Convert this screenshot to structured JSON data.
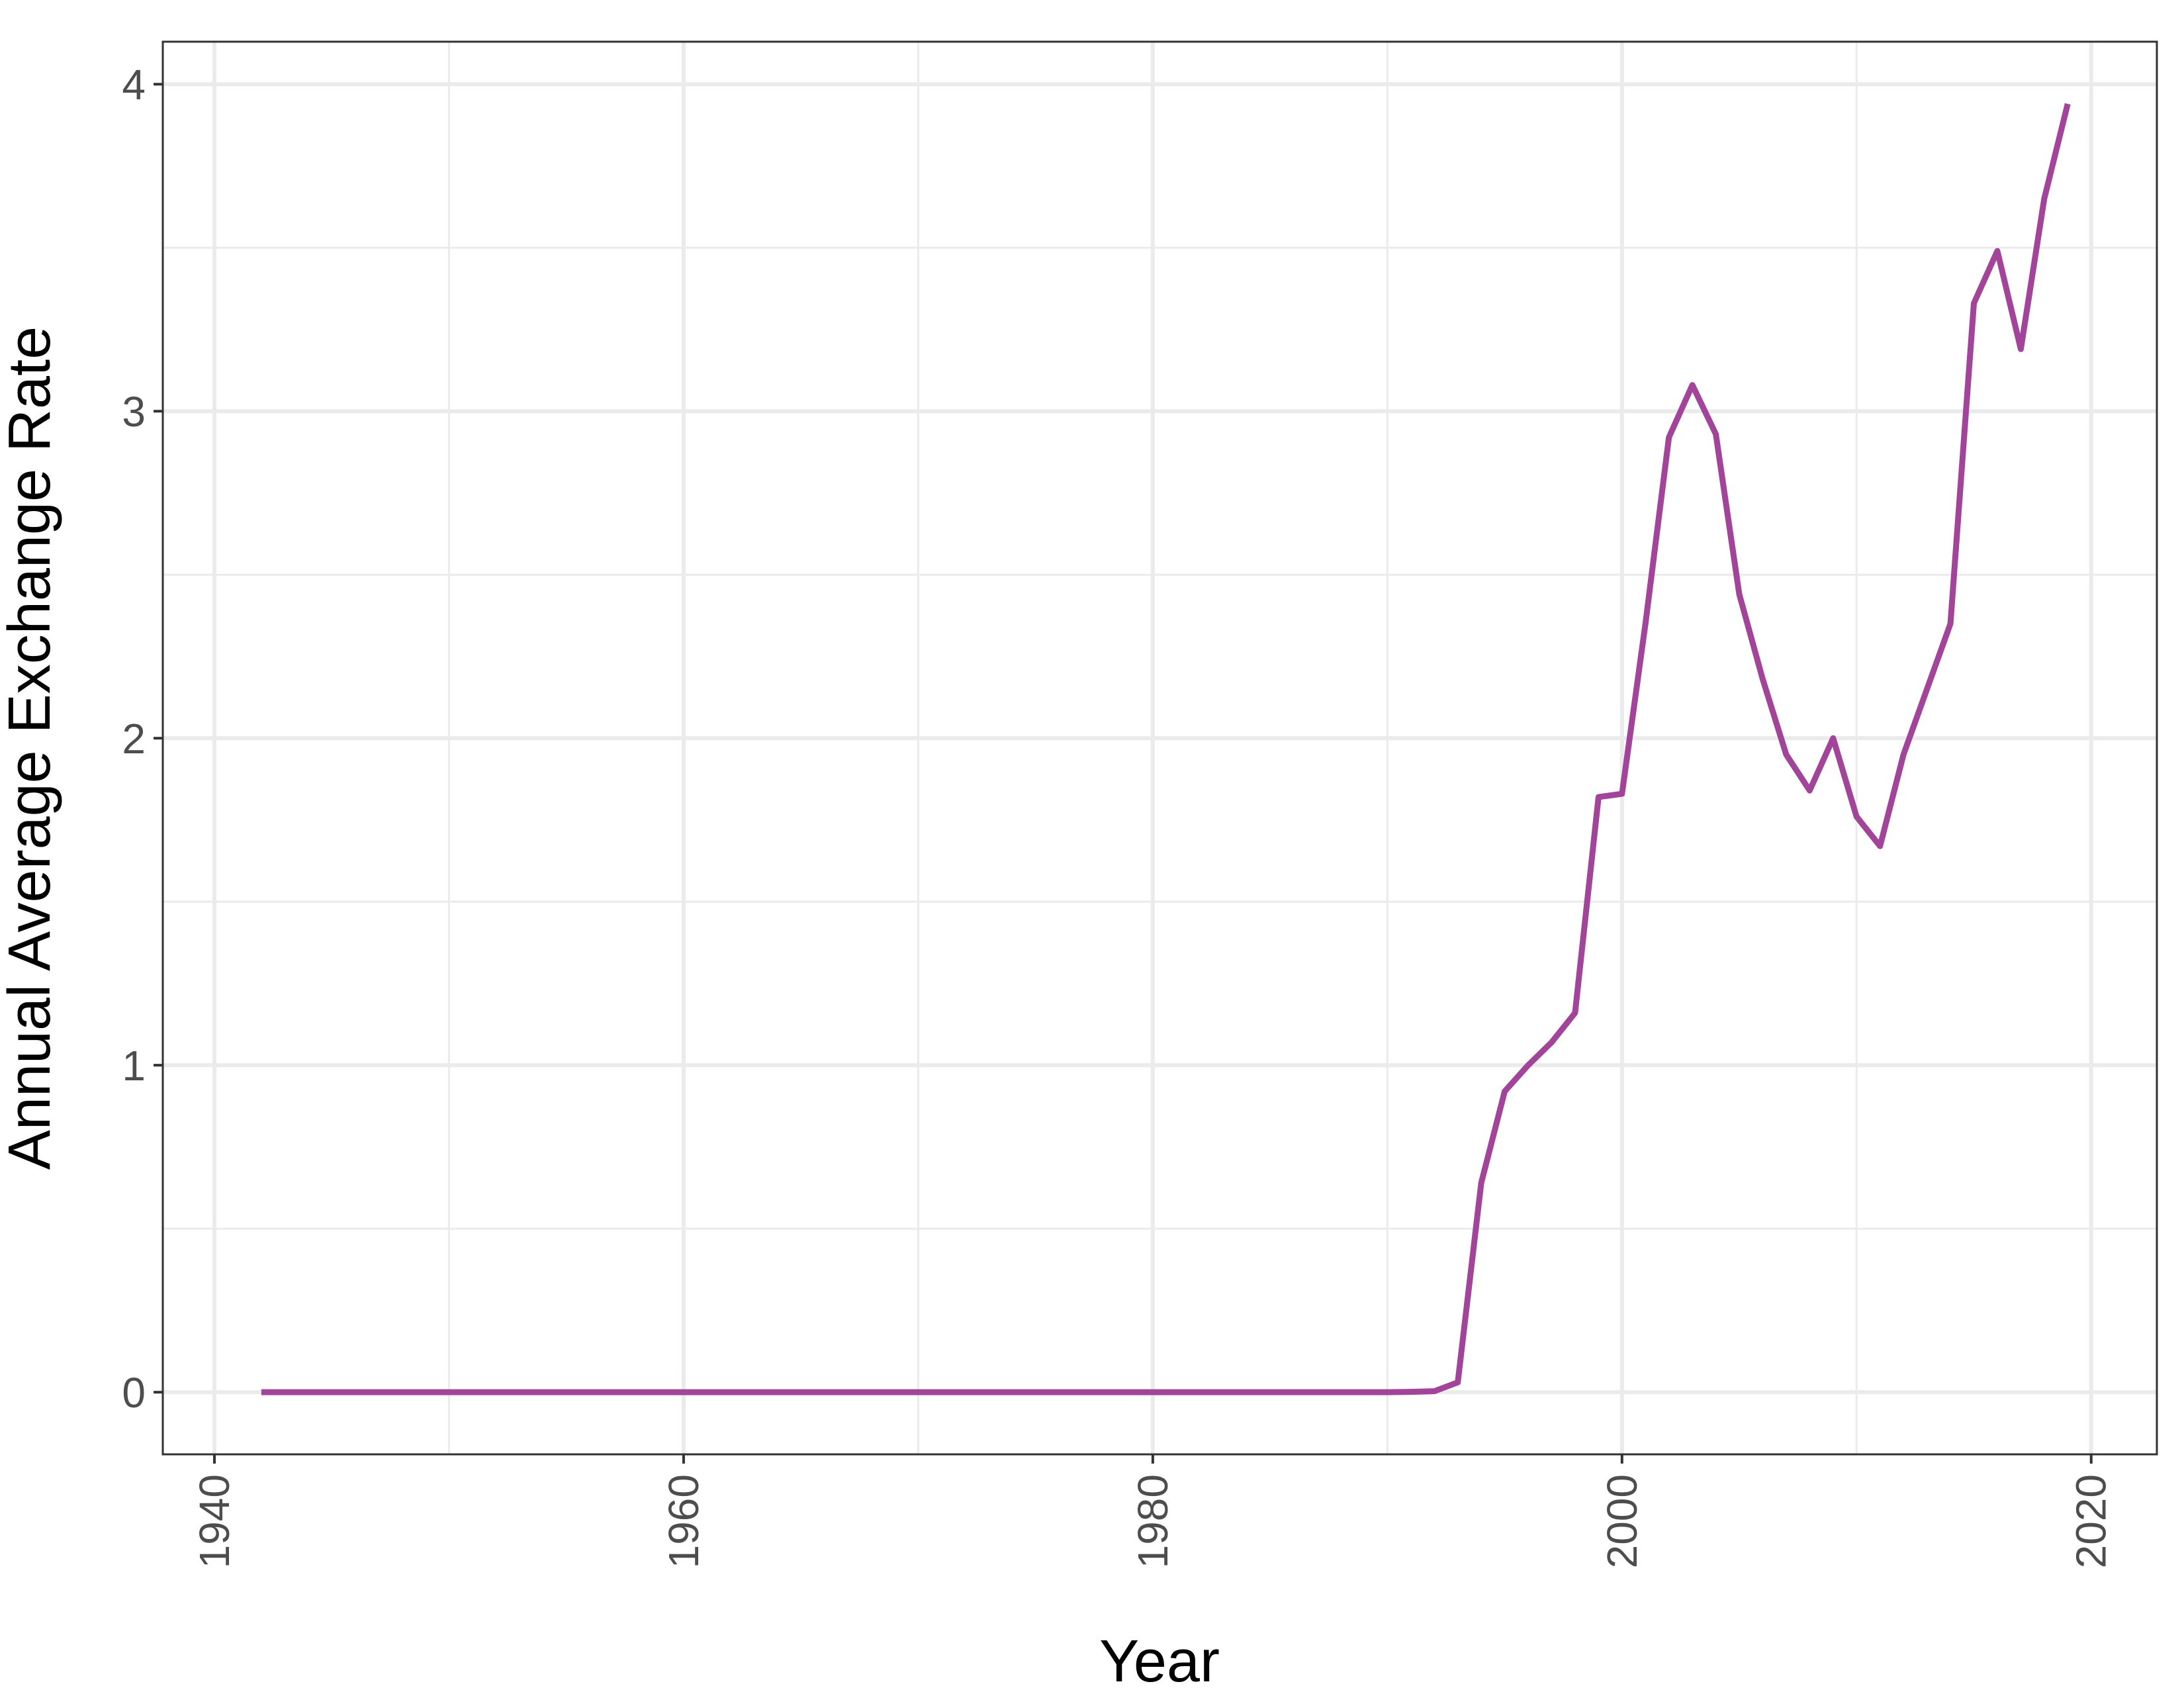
{
  "chart_data": {
    "type": "line",
    "title": "",
    "xlabel": "Year",
    "ylabel": "Annual Average Exchange Rate",
    "xlim": [
      1937.8,
      2022.8
    ],
    "ylim": [
      -0.19,
      4.13
    ],
    "x_ticks": [
      1940,
      1960,
      1980,
      2000,
      2020
    ],
    "x_tick_labels": [
      "1940",
      "1960",
      "1980",
      "2000",
      "2020"
    ],
    "x_minor_ticks": [
      1950,
      1970,
      1990,
      2010
    ],
    "y_ticks": [
      0,
      1,
      2,
      3,
      4
    ],
    "y_tick_labels": [
      "0",
      "1",
      "2",
      "3",
      "4"
    ],
    "y_minor_ticks": [
      0.5,
      1.5,
      2.5,
      3.5
    ],
    "x_tick_label_rotation": 90,
    "grid": true,
    "legend": "none",
    "series": [
      {
        "color": "#a3449b",
        "x": [
          1942,
          1945,
          1950,
          1955,
          1960,
          1965,
          1970,
          1975,
          1980,
          1985,
          1989,
          1990,
          1991,
          1992,
          1993,
          1994,
          1995,
          1996,
          1997,
          1998,
          1999,
          2000,
          2001,
          2002,
          2003,
          2004,
          2005,
          2006,
          2007,
          2008,
          2009,
          2010,
          2011,
          2012,
          2013,
          2014,
          2015,
          2016,
          2017,
          2018,
          2019
        ],
        "y": [
          0,
          0,
          0,
          0,
          0,
          0,
          0,
          0,
          0,
          0,
          0,
          0,
          0.001,
          0.003,
          0.03,
          0.64,
          0.92,
          1.0,
          1.07,
          1.16,
          1.82,
          1.83,
          2.35,
          2.92,
          3.08,
          2.93,
          2.44,
          2.18,
          1.95,
          1.84,
          2.0,
          1.76,
          1.67,
          1.95,
          2.15,
          2.35,
          3.33,
          3.49,
          3.19,
          3.65,
          3.94
        ]
      }
    ]
  }
}
